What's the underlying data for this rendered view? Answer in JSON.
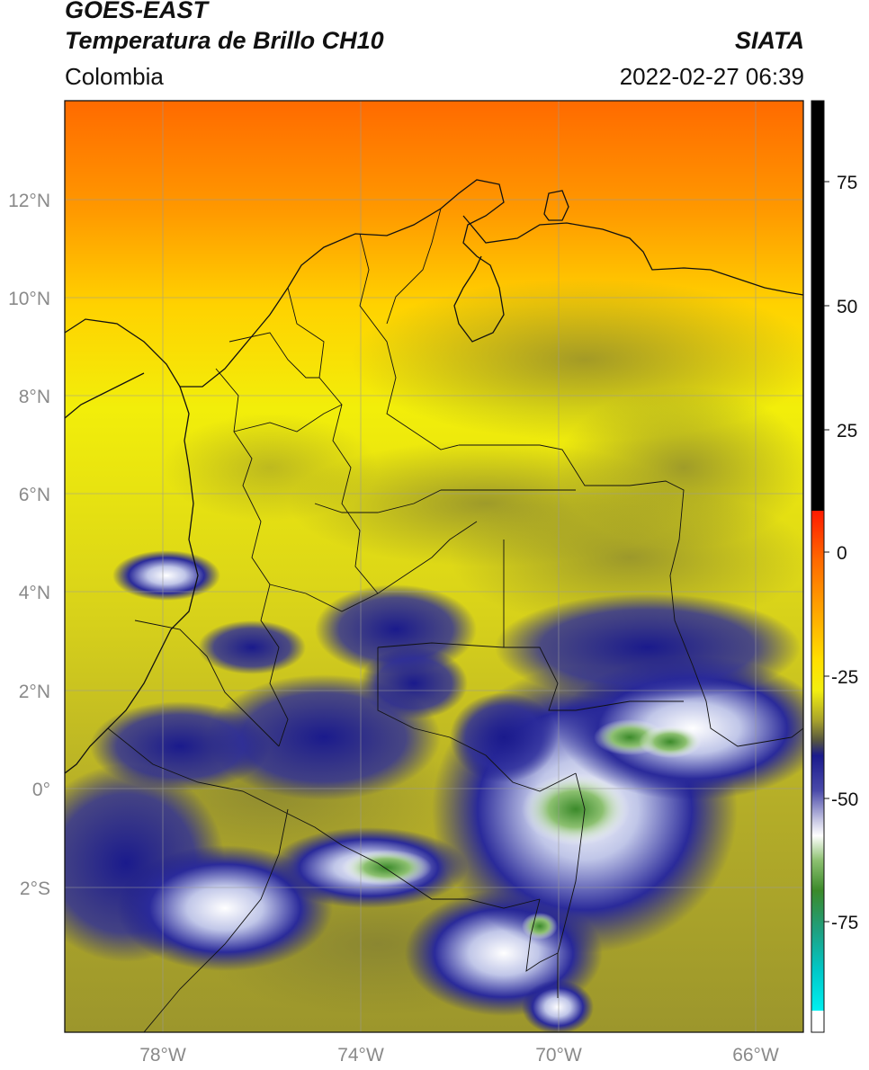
{
  "header": {
    "satellite": "GOES-EAST",
    "product": "Temperatura de Brillo CH10",
    "region": "Colombia",
    "agency": "SIATA",
    "datetime": "2022-02-27 06:39"
  },
  "axes": {
    "lat_labels": [
      "12°N",
      "10°N",
      "8°N",
      "6°N",
      "4°N",
      "2°N",
      "0°",
      "2°S"
    ],
    "lon_labels": [
      "78°W",
      "74°W",
      "70°W",
      "66°W"
    ]
  },
  "colorbar": {
    "ticks": [
      "75",
      "50",
      "25",
      "0",
      "-25",
      "-50",
      "-75"
    ],
    "colors": {
      "black": "#000000",
      "red": "#ff1a00",
      "orange": "#ff9a00",
      "yellow": "#f7f200",
      "olive": "#9c9a2e",
      "navy": "#1a1a8c",
      "white": "#ffffff",
      "green": "#3b8a2a",
      "cyan": "#00e0e0"
    }
  }
}
